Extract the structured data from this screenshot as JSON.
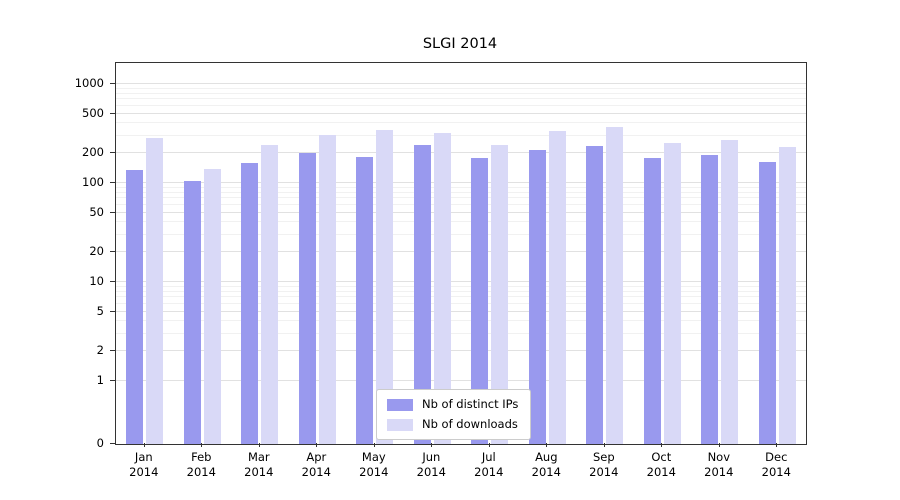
{
  "chart_data": {
    "type": "bar",
    "title": "SLGI 2014",
    "xlabel": "",
    "ylabel": "",
    "y_scale": "symlog",
    "y_ticks": [
      0,
      1,
      2,
      5,
      10,
      20,
      50,
      100,
      200,
      500,
      1000
    ],
    "ylim": [
      0,
      1600
    ],
    "grid": true,
    "legend_position": "lower center",
    "categories": [
      "Jan 2014",
      "Feb 2014",
      "Mar 2014",
      "Apr 2014",
      "May 2014",
      "Jun 2014",
      "Jul 2014",
      "Aug 2014",
      "Sep 2014",
      "Oct 2014",
      "Nov 2014",
      "Dec 2014"
    ],
    "series": [
      {
        "name": "Nb of distinct IPs",
        "color": "#9999ee",
        "values": [
          135,
          105,
          160,
          200,
          185,
          245,
          180,
          215,
          235,
          180,
          190,
          165
        ]
      },
      {
        "name": "Nb of downloads",
        "color": "#d9d9f7",
        "values": [
          285,
          140,
          240,
          305,
          345,
          320,
          245,
          335,
          365,
          255,
          275,
          230
        ]
      }
    ]
  }
}
